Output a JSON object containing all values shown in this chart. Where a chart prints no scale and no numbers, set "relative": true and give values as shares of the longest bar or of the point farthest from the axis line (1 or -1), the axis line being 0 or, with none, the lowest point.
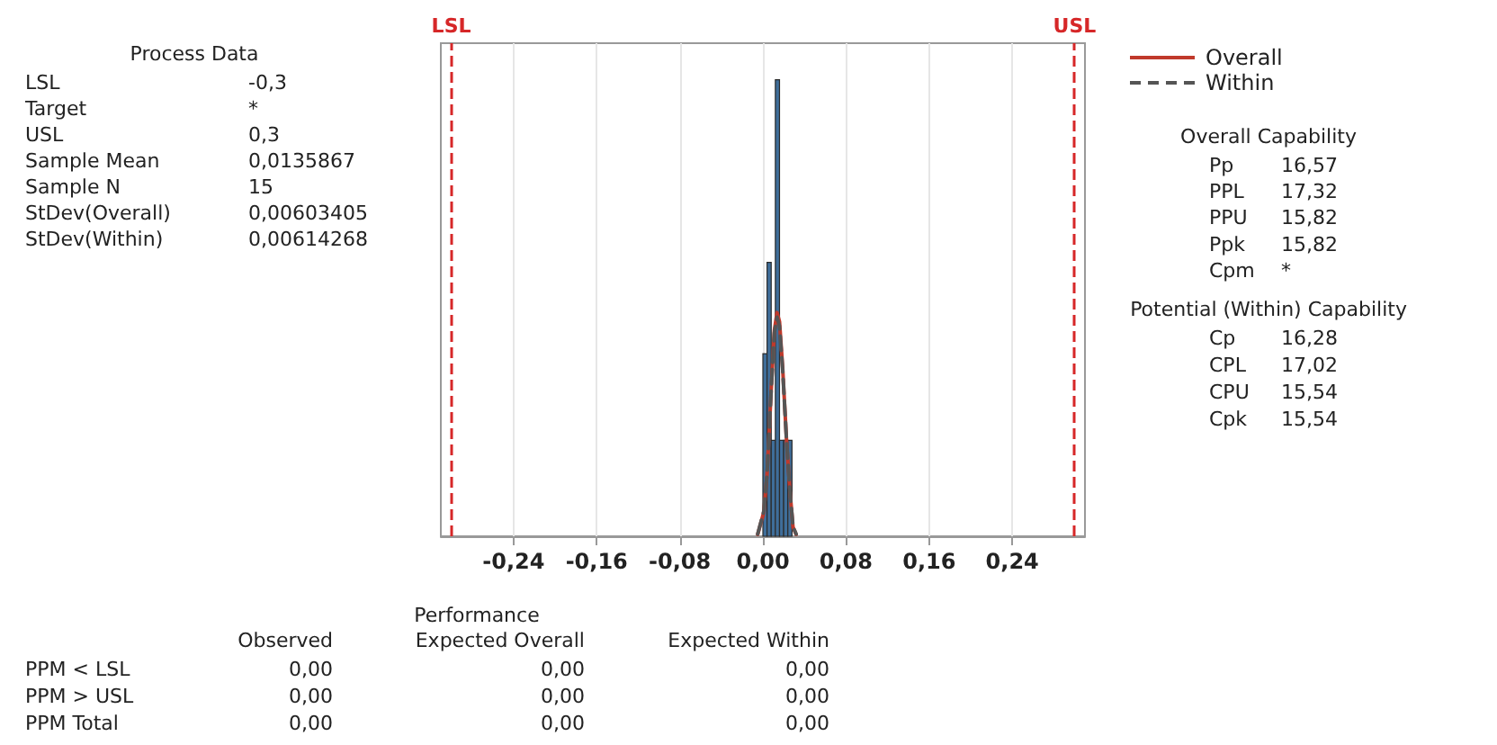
{
  "chart_data": {
    "type": "histogram",
    "relative": true,
    "bins": [
      0.0,
      0.004,
      0.008,
      0.012,
      0.016,
      0.02,
      0.024,
      0.028
    ],
    "values": [
      0.4,
      0.6,
      0.21,
      1.0,
      0.21,
      0.21,
      0.21
    ],
    "color": "#3f6e9a",
    "series": [
      {
        "name": "Overall",
        "type": "line",
        "line_style": "solid",
        "color": "#c0392b",
        "x": [
          -0.005,
          0.001,
          0.004,
          0.008,
          0.011,
          0.0136,
          0.016,
          0.019,
          0.023,
          0.026,
          0.029,
          0.032
        ],
        "values": [
          0.004,
          0.054,
          0.136,
          0.32,
          0.45,
          0.49,
          0.47,
          0.37,
          0.2,
          0.1,
          0.02,
          0.004
        ]
      },
      {
        "name": "Within",
        "type": "line",
        "line_style": "dashed",
        "color": "#555555",
        "x": [
          -0.005,
          0.001,
          0.004,
          0.008,
          0.011,
          0.0136,
          0.016,
          0.019,
          0.023,
          0.026,
          0.029,
          0.032
        ],
        "values": [
          0.005,
          0.056,
          0.137,
          0.32,
          0.445,
          0.48,
          0.46,
          0.365,
          0.2,
          0.1,
          0.021,
          0.005
        ]
      }
    ],
    "xlim": [
      -0.31,
      0.31
    ],
    "xticks": [
      {
        "value": -0.24,
        "label": "-0,24"
      },
      {
        "value": -0.16,
        "label": "-0,16"
      },
      {
        "value": -0.08,
        "label": "-0,08"
      },
      {
        "value": 0,
        "label": "0,00"
      },
      {
        "value": 0.08,
        "label": "0,08"
      },
      {
        "value": 0.16,
        "label": "0,16"
      },
      {
        "value": 0.24,
        "label": "0,24"
      }
    ],
    "tick_labels": "x",
    "grid": "x",
    "legend": "top right",
    "ref_lines": [
      {
        "axis": "x",
        "value": -0.3,
        "label": "LSL",
        "color": "#d62728",
        "line_style": "dashed"
      },
      {
        "axis": "x",
        "value": 0.3,
        "label": "USL",
        "color": "#d62728",
        "line_style": "dashed"
      }
    ],
    "annotations": [
      "Process Data",
      "LSL",
      "-0,3",
      "Target",
      "*",
      "USL",
      "0,3",
      "Sample Mean",
      "0,0135867",
      "Sample N",
      "15",
      "StDev(Overall)",
      "0,00603405",
      "StDev(Within)",
      "0,00614268",
      "Overall Capability",
      "Pp",
      "16,57",
      "PPL",
      "17,32",
      "PPU",
      "15,82",
      "Ppk",
      "15,82",
      "Cpm",
      "*",
      "Potential (Within) Capability",
      "Cp",
      "16,28",
      "CPL",
      "17,02",
      "CPU",
      "15,54",
      "Cpk",
      "15,54",
      "Performance",
      "Observed",
      "Expected Overall",
      "Expected Within",
      "PPM < LSL",
      "0,00",
      "0,00",
      "0,00",
      "PPM > USL",
      "0,00",
      "0,00",
      "0,00",
      "PPM Total",
      "0,00",
      "0,00",
      "0,00"
    ]
  }
}
